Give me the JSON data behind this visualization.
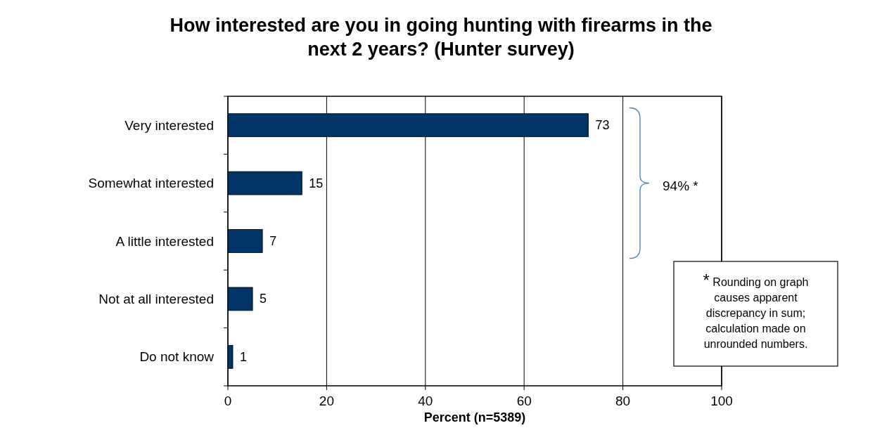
{
  "chart_data": {
    "type": "bar",
    "orientation": "horizontal",
    "title": "How interested are you in going hunting with firearms in the next 2 years? (Hunter survey)",
    "xlabel": "Percent (n=5389)",
    "categories": [
      "Very interested",
      "Somewhat interested",
      "A little interested",
      "Not at all interested",
      "Do not know"
    ],
    "values": [
      73,
      15,
      7,
      5,
      1
    ],
    "color": "#003366",
    "data_labels": true,
    "xlim": [
      0,
      100
    ],
    "xticks": [
      0,
      20,
      40,
      60,
      80,
      100
    ],
    "grid": "x",
    "annotations": [
      "94% *",
      "* Rounding on graph causes apparent discrepancy in sum; calculation made on unrounded numbers."
    ]
  }
}
